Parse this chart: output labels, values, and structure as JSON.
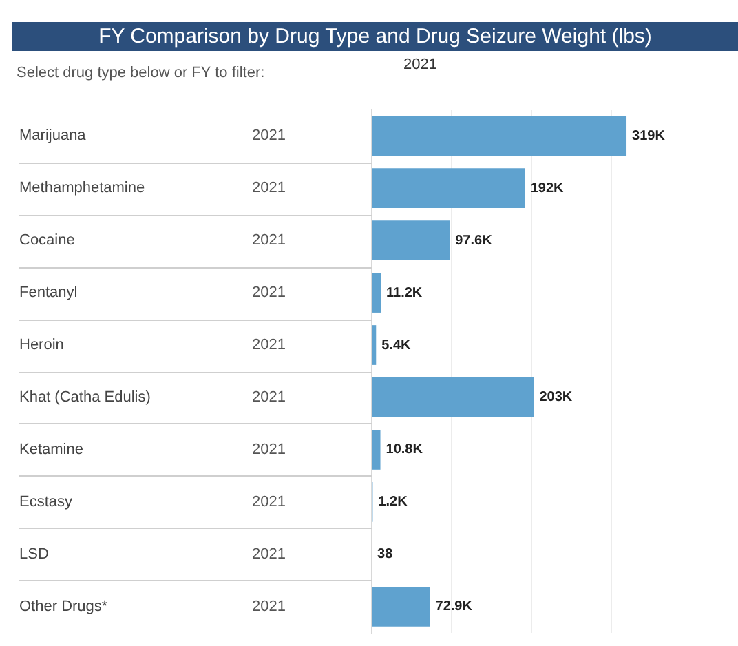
{
  "chart_data": {
    "type": "bar",
    "orientation": "horizontal",
    "title": "FY Comparison by Drug Type and Drug Seizure Weight (lbs)",
    "subtitle": "Select drug type below or FY to filter:",
    "categories": [
      "Marijuana",
      "Methamphetamine",
      "Cocaine",
      "Fentanyl",
      "Heroin",
      "Khat (Catha Edulis)",
      "Ketamine",
      "Ecstasy",
      "LSD",
      "Other Drugs*"
    ],
    "series": [
      {
        "name": "2021",
        "color": "#5fa2cf",
        "values": [
          319000,
          192000,
          97600,
          11200,
          5400,
          203000,
          10800,
          1200,
          38,
          72900
        ],
        "value_labels": [
          "319K",
          "192K",
          "97.6K",
          "11.2K",
          "5.4K",
          "203K",
          "10.8K",
          "1.2K",
          "38",
          "72.9K"
        ]
      }
    ],
    "xticks": [
      {
        "value": 0,
        "label": null
      },
      {
        "value": 100000,
        "label": null
      },
      {
        "value": 200000,
        "label": null
      },
      {
        "value": 300000,
        "label": null
      }
    ],
    "grid": "x",
    "legend": false,
    "tick_labels": "y"
  }
}
